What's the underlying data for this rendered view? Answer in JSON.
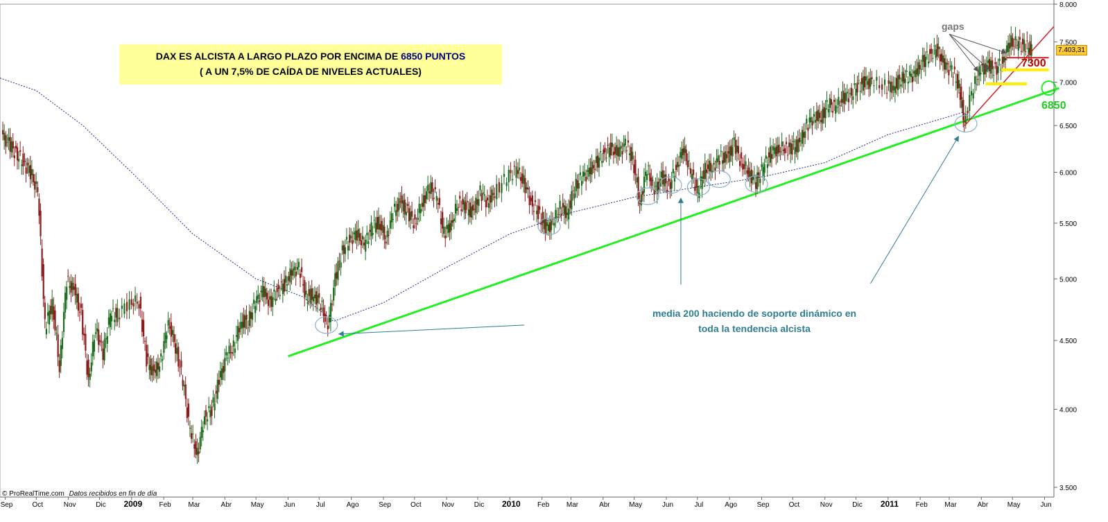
{
  "header": {
    "title_line1_prefix": "DAX ES ALCISTA A LARGO PLAZO POR ENCIMA DE ",
    "title_highlight": "6850",
    "title_line1_suffix": " PUNTOS",
    "title_line2": "( A UN 7,5% DE CAÍDA DE NIVELES ACTUALES)"
  },
  "annotations": {
    "support_line1": "media 200 haciendo de soporte dinámico en",
    "support_line2": "toda la tendencia alcista",
    "gaps": "gaps",
    "level_7300": "7300",
    "level_6850": "6850",
    "last_price": "7.403,31"
  },
  "footer": {
    "source": "© ProRealTime.com",
    "note": "Datos recibidos en fin de día"
  },
  "colors": {
    "bull_candle": "#1a6b1a",
    "bear_candle": "#8b1a1a",
    "trend_green": "#22ee22",
    "ma_line": "#1a2a8a",
    "resistance_red": "#cc2222",
    "support_yellow": "#ffee00",
    "circle": "#8ab0c8"
  },
  "chart_data": {
    "type": "line",
    "title": "",
    "scale": "log",
    "ylim": [
      3500,
      8000
    ],
    "y_ticks": [
      "8.000",
      "7.500",
      "7.000",
      "6.500",
      "6.000",
      "5.500",
      "5.000",
      "4.500",
      "4.000",
      "3.500"
    ],
    "y_tick_values": [
      8000,
      7500,
      7000,
      6500,
      6000,
      5500,
      5000,
      4500,
      4000,
      3500
    ],
    "x_ticks": [
      "Sep",
      "Oct",
      "Nov",
      "Dic",
      "2009",
      "Feb",
      "Mar",
      "Abr",
      "May",
      "Jun",
      "Jul",
      "Ago",
      "Sep",
      "Oct",
      "Nov",
      "Dic",
      "2010",
      "Feb",
      "Mar",
      "Abr",
      "May",
      "Jun",
      "Jul",
      "Ago",
      "Sep",
      "Oct",
      "Nov",
      "Dic",
      "2011",
      "Feb",
      "Mar",
      "Abr",
      "May",
      "Jun"
    ],
    "x_tick_bold": [
      "2009",
      "2010",
      "2011"
    ],
    "x_range": [
      "2008-08-27",
      "2011-06-10"
    ],
    "price_series": {
      "name": "DAX",
      "points": [
        [
          "2008-08-29",
          6400
        ],
        [
          "2008-09-05",
          6300
        ],
        [
          "2008-09-12",
          6200
        ],
        [
          "2008-09-19",
          6100
        ],
        [
          "2008-09-26",
          6000
        ],
        [
          "2008-10-03",
          5800
        ],
        [
          "2008-10-10",
          4600
        ],
        [
          "2008-10-17",
          4800
        ],
        [
          "2008-10-24",
          4300
        ],
        [
          "2008-10-31",
          4980
        ],
        [
          "2008-11-07",
          4900
        ],
        [
          "2008-11-14",
          4700
        ],
        [
          "2008-11-21",
          4200
        ],
        [
          "2008-11-28",
          4600
        ],
        [
          "2008-12-05",
          4400
        ],
        [
          "2008-12-12",
          4700
        ],
        [
          "2008-12-19",
          4700
        ],
        [
          "2008-12-31",
          4810
        ],
        [
          "2009-01-09",
          4800
        ],
        [
          "2009-01-16",
          4350
        ],
        [
          "2009-01-23",
          4250
        ],
        [
          "2009-01-30",
          4350
        ],
        [
          "2009-02-06",
          4650
        ],
        [
          "2009-02-13",
          4450
        ],
        [
          "2009-02-20",
          4200
        ],
        [
          "2009-02-27",
          3850
        ],
        [
          "2009-03-06",
          3700
        ],
        [
          "2009-03-13",
          3950
        ],
        [
          "2009-03-20",
          4000
        ],
        [
          "2009-03-27",
          4200
        ],
        [
          "2009-04-03",
          4380
        ],
        [
          "2009-04-10",
          4450
        ],
        [
          "2009-04-17",
          4650
        ],
        [
          "2009-04-24",
          4650
        ],
        [
          "2009-05-01",
          4800
        ],
        [
          "2009-05-08",
          4900
        ],
        [
          "2009-05-15",
          4800
        ],
        [
          "2009-05-22",
          4900
        ],
        [
          "2009-05-29",
          4950
        ],
        [
          "2009-06-05",
          5050
        ],
        [
          "2009-06-12",
          5100
        ],
        [
          "2009-06-19",
          4850
        ],
        [
          "2009-06-26",
          4870
        ],
        [
          "2009-07-03",
          4800
        ],
        [
          "2009-07-10",
          4600
        ],
        [
          "2009-07-17",
          5000
        ],
        [
          "2009-07-24",
          5250
        ],
        [
          "2009-07-31",
          5350
        ],
        [
          "2009-08-07",
          5400
        ],
        [
          "2009-08-14",
          5300
        ],
        [
          "2009-08-21",
          5450
        ],
        [
          "2009-08-28",
          5520
        ],
        [
          "2009-09-04",
          5350
        ],
        [
          "2009-09-11",
          5600
        ],
        [
          "2009-09-18",
          5700
        ],
        [
          "2009-09-25",
          5600
        ],
        [
          "2009-10-02",
          5500
        ],
        [
          "2009-10-09",
          5700
        ],
        [
          "2009-10-16",
          5850
        ],
        [
          "2009-10-23",
          5750
        ],
        [
          "2009-10-30",
          5400
        ],
        [
          "2009-11-06",
          5500
        ],
        [
          "2009-11-13",
          5700
        ],
        [
          "2009-11-20",
          5650
        ],
        [
          "2009-11-27",
          5600
        ],
        [
          "2009-12-04",
          5800
        ],
        [
          "2009-12-11",
          5700
        ],
        [
          "2009-12-18",
          5800
        ],
        [
          "2009-12-30",
          5950
        ],
        [
          "2010-01-08",
          6030
        ],
        [
          "2010-01-15",
          5900
        ],
        [
          "2010-01-22",
          5700
        ],
        [
          "2010-01-29",
          5600
        ],
        [
          "2010-02-05",
          5450
        ],
        [
          "2010-02-12",
          5500
        ],
        [
          "2010-02-19",
          5650
        ],
        [
          "2010-02-26",
          5600
        ],
        [
          "2010-03-05",
          5850
        ],
        [
          "2010-03-12",
          5950
        ],
        [
          "2010-03-19",
          6000
        ],
        [
          "2010-03-26",
          6100
        ],
        [
          "2010-04-02",
          6200
        ],
        [
          "2010-04-09",
          6250
        ],
        [
          "2010-04-16",
          6200
        ],
        [
          "2010-04-23",
          6300
        ],
        [
          "2010-04-30",
          6150
        ],
        [
          "2010-05-07",
          5700
        ],
        [
          "2010-05-14",
          6050
        ],
        [
          "2010-05-21",
          5800
        ],
        [
          "2010-05-28",
          5950
        ],
        [
          "2010-06-04",
          5850
        ],
        [
          "2010-06-11",
          6050
        ],
        [
          "2010-06-18",
          6250
        ],
        [
          "2010-06-25",
          6000
        ],
        [
          "2010-07-02",
          5800
        ],
        [
          "2010-07-09",
          6050
        ],
        [
          "2010-07-16",
          6050
        ],
        [
          "2010-07-23",
          6150
        ],
        [
          "2010-07-30",
          6150
        ],
        [
          "2010-08-06",
          6300
        ],
        [
          "2010-08-13",
          6100
        ],
        [
          "2010-08-20",
          6000
        ],
        [
          "2010-08-27",
          5900
        ],
        [
          "2010-09-03",
          6050
        ],
        [
          "2010-09-10",
          6200
        ],
        [
          "2010-09-17",
          6250
        ],
        [
          "2010-09-24",
          6250
        ],
        [
          "2010-10-01",
          6250
        ],
        [
          "2010-10-08",
          6300
        ],
        [
          "2010-10-15",
          6500
        ],
        [
          "2010-10-22",
          6600
        ],
        [
          "2010-10-29",
          6600
        ],
        [
          "2010-11-05",
          6750
        ],
        [
          "2010-11-12",
          6700
        ],
        [
          "2010-11-19",
          6820
        ],
        [
          "2010-11-26",
          6850
        ],
        [
          "2010-12-03",
          6950
        ],
        [
          "2010-12-10",
          7000
        ],
        [
          "2010-12-17",
          7000
        ],
        [
          "2010-12-30",
          6950
        ],
        [
          "2011-01-07",
          6950
        ],
        [
          "2011-01-14",
          7050
        ],
        [
          "2011-01-21",
          7060
        ],
        [
          "2011-01-28",
          7100
        ],
        [
          "2011-02-04",
          7250
        ],
        [
          "2011-02-11",
          7350
        ],
        [
          "2011-02-18",
          7400
        ],
        [
          "2011-02-25",
          7200
        ],
        [
          "2011-03-04",
          7150
        ],
        [
          "2011-03-11",
          6950
        ],
        [
          "2011-03-16",
          6550
        ],
        [
          "2011-03-25",
          6950
        ],
        [
          "2011-04-01",
          7150
        ],
        [
          "2011-04-08",
          7200
        ],
        [
          "2011-04-15",
          7150
        ],
        [
          "2011-04-22",
          7250
        ],
        [
          "2011-04-29",
          7500
        ],
        [
          "2011-05-06",
          7480
        ],
        [
          "2011-05-13",
          7450
        ],
        [
          "2011-05-20",
          7403
        ]
      ]
    },
    "moving_average": {
      "name": "media 200",
      "points": [
        [
          "2008-08-27",
          7050
        ],
        [
          "2008-10-01",
          6900
        ],
        [
          "2008-11-15",
          6500
        ],
        [
          "2009-01-01",
          6000
        ],
        [
          "2009-03-01",
          5400
        ],
        [
          "2009-05-01",
          5000
        ],
        [
          "2009-06-15",
          4850
        ],
        [
          "2009-07-15",
          4650
        ],
        [
          "2009-09-01",
          4800
        ],
        [
          "2009-11-01",
          5100
        ],
        [
          "2010-01-01",
          5400
        ],
        [
          "2010-03-01",
          5600
        ],
        [
          "2010-05-01",
          5750
        ],
        [
          "2010-07-01",
          5850
        ],
        [
          "2010-09-01",
          5950
        ],
        [
          "2010-11-01",
          6100
        ],
        [
          "2011-01-01",
          6400
        ],
        [
          "2011-03-15",
          6650
        ]
      ]
    },
    "trendline": {
      "name": "",
      "from": [
        "2009-06-01",
        4380
      ],
      "to": [
        "2011-06-15",
        6930
      ]
    },
    "red_channel": {
      "from": [
        "2011-03-16",
        6500
      ],
      "to": [
        "2011-06-10",
        7700
      ]
    },
    "red_level": {
      "value": 7300,
      "from": "2011-04-25",
      "to": "2011-06-05"
    },
    "yellow_levels": [
      {
        "value": 7150,
        "from": "2011-04-20",
        "to": "2011-06-05"
      },
      {
        "value": 6980,
        "from": "2011-04-05",
        "to": "2011-05-15"
      }
    ],
    "circles": [
      [
        "2009-07-08",
        4620
      ],
      [
        "2010-02-08",
        5470
      ],
      [
        "2010-05-14",
        5760
      ],
      [
        "2010-06-05",
        5870
      ],
      [
        "2010-07-02",
        5850
      ],
      [
        "2010-07-22",
        5930
      ],
      [
        "2010-08-27",
        5880
      ],
      [
        "2011-03-17",
        6520
      ],
      [
        "2011-06-05",
        6930
      ]
    ],
    "arrows": [
      {
        "from": [
          "2010-01-15",
          4620
        ],
        "to": [
          "2009-07-20",
          4550
        ]
      },
      {
        "from": [
          "2010-06-15",
          4950
        ],
        "to": [
          "2010-06-15",
          5740
        ]
      },
      {
        "from": [
          "2010-12-15",
          4960
        ],
        "to": [
          "2011-03-10",
          6380
        ]
      },
      {
        "from": [
          "2011-03-01",
          7600
        ],
        "to": [
          "2011-03-29",
          7130
        ]
      },
      {
        "from": [
          "2011-03-01",
          7600
        ],
        "to": [
          "2011-04-09",
          7150
        ]
      },
      {
        "from": [
          "2011-03-01",
          7600
        ],
        "to": [
          "2011-04-25",
          7360
        ]
      }
    ]
  }
}
